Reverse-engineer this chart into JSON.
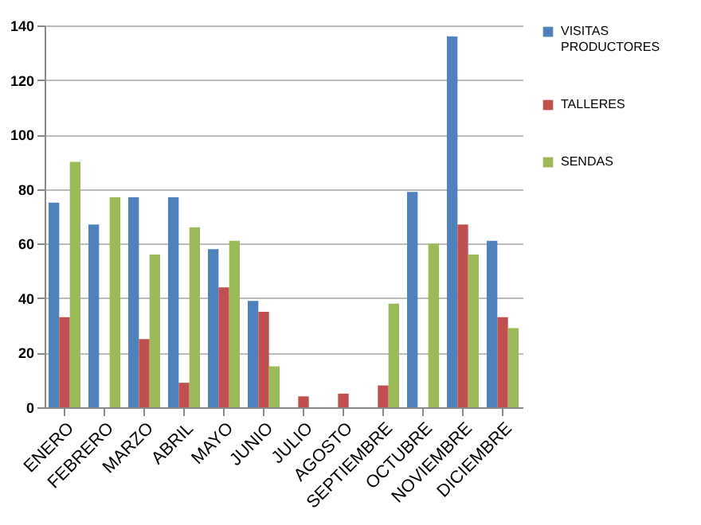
{
  "chart_data": {
    "type": "bar",
    "categories": [
      "ENERO",
      "FEBRERO",
      "MARZO",
      "ABRIL",
      "MAYO",
      "JUNIO",
      "JULIO",
      "AGOSTO",
      "SEPTIEMBRE",
      "OCTUBRE",
      "NOVIEMBRE",
      "DICIEMBRE"
    ],
    "series": [
      {
        "name": "VISITAS PRODUCTORES",
        "color": "#4f81bd",
        "values": [
          75,
          67,
          77,
          77,
          58,
          39,
          0,
          0,
          0,
          79,
          136,
          61
        ]
      },
      {
        "name": "TALLERES",
        "color": "#c0504d",
        "values": [
          33,
          0,
          25,
          9,
          44,
          35,
          4,
          5,
          8,
          0,
          67,
          33
        ]
      },
      {
        "name": "SENDAS",
        "color": "#9bbb59",
        "values": [
          90,
          77,
          56,
          66,
          61,
          15,
          0,
          0,
          38,
          60,
          56,
          29
        ]
      }
    ],
    "ylim": [
      0,
      140
    ],
    "yticks": [
      0,
      20,
      40,
      60,
      80,
      100,
      120,
      140
    ],
    "grid": "y",
    "legend": "right"
  }
}
